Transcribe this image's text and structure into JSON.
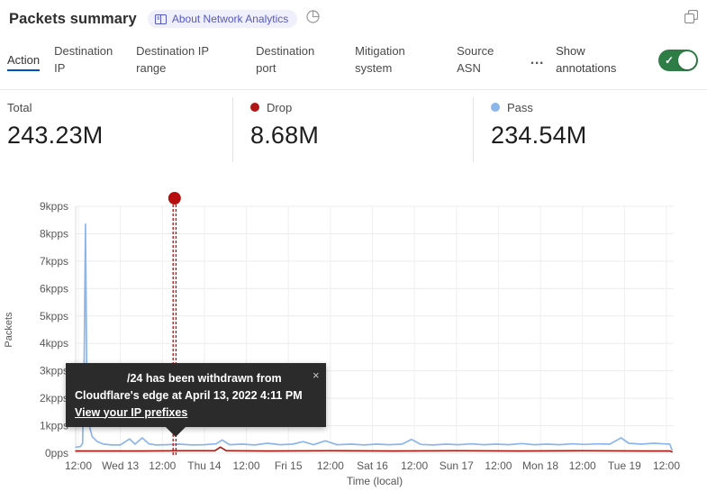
{
  "header": {
    "title": "Packets summary",
    "about_badge": "About Network Analytics"
  },
  "tabs": {
    "items": [
      {
        "label": "Action",
        "selected": true
      },
      {
        "label": "Destination IP",
        "selected": false
      },
      {
        "label": "Destination IP range",
        "selected": false
      },
      {
        "label": "Destination port",
        "selected": false
      },
      {
        "label": "Mitigation system",
        "selected": false
      },
      {
        "label": "Source ASN",
        "selected": false
      }
    ],
    "more_label": "…",
    "annotations_label": "Show annotations",
    "annotations_enabled": true,
    "toggle_color": "#2e7d46",
    "selected_underline_color": "#0051c3"
  },
  "stats": {
    "items": [
      {
        "label": "Total",
        "value": "243.23M",
        "color": null
      },
      {
        "label": "Drop",
        "value": "8.68M",
        "color": "#b01717"
      },
      {
        "label": "Pass",
        "value": "234.54M",
        "color": "#8cb6ea"
      }
    ]
  },
  "annotation_tooltip": {
    "line1": "/24 has been withdrawn from",
    "line2": "Cloudflare's edge at April 13, 2022 4:11 PM",
    "link": "View your IP prefixes",
    "close": "×"
  },
  "chart_data": {
    "type": "line",
    "title": "",
    "xlabel": "Time (local)",
    "ylabel": "Packets",
    "x_ticks": [
      "12:00",
      "Wed 13",
      "12:00",
      "Thu 14",
      "12:00",
      "Fri 15",
      "12:00",
      "Sat 16",
      "12:00",
      "Sun 17",
      "12:00",
      "Mon 18",
      "12:00",
      "Tue 19",
      "12:00"
    ],
    "y_ticks": [
      "0pps",
      "1kpps",
      "2kpps",
      "3kpps",
      "4kpps",
      "5kpps",
      "6kpps",
      "7kpps",
      "8kpps",
      "9kpps"
    ],
    "ylim": [
      0,
      9
    ],
    "y_unit": "kpps",
    "x_unit": "half-days since first tick (Apr 12 12:00, local)",
    "grid": true,
    "legend_position": "stats-row-above-chart",
    "series": [
      {
        "name": "Pass",
        "color": "#8cb6ea",
        "points": [
          [
            -0.06,
            0.22
          ],
          [
            0.05,
            0.24
          ],
          [
            0.1,
            0.35
          ],
          [
            0.14,
            3.5
          ],
          [
            0.17,
            8.35
          ],
          [
            0.2,
            3.0
          ],
          [
            0.25,
            1.05
          ],
          [
            0.33,
            0.6
          ],
          [
            0.45,
            0.42
          ],
          [
            0.6,
            0.33
          ],
          [
            0.8,
            0.3
          ],
          [
            1.0,
            0.3
          ],
          [
            1.22,
            0.52
          ],
          [
            1.35,
            0.33
          ],
          [
            1.52,
            0.56
          ],
          [
            1.68,
            0.34
          ],
          [
            1.85,
            0.3
          ],
          [
            2.1,
            0.31
          ],
          [
            2.4,
            0.33
          ],
          [
            2.7,
            0.3
          ],
          [
            3.0,
            0.31
          ],
          [
            3.28,
            0.34
          ],
          [
            3.42,
            0.48
          ],
          [
            3.6,
            0.31
          ],
          [
            3.9,
            0.33
          ],
          [
            4.2,
            0.3
          ],
          [
            4.5,
            0.36
          ],
          [
            4.8,
            0.31
          ],
          [
            5.1,
            0.33
          ],
          [
            5.35,
            0.42
          ],
          [
            5.6,
            0.31
          ],
          [
            5.88,
            0.45
          ],
          [
            6.15,
            0.31
          ],
          [
            6.5,
            0.33
          ],
          [
            6.8,
            0.3
          ],
          [
            7.1,
            0.33
          ],
          [
            7.4,
            0.31
          ],
          [
            7.7,
            0.33
          ],
          [
            7.93,
            0.5
          ],
          [
            8.15,
            0.32
          ],
          [
            8.45,
            0.3
          ],
          [
            8.75,
            0.33
          ],
          [
            9.05,
            0.31
          ],
          [
            9.35,
            0.34
          ],
          [
            9.65,
            0.31
          ],
          [
            9.95,
            0.33
          ],
          [
            10.25,
            0.31
          ],
          [
            10.55,
            0.35
          ],
          [
            10.85,
            0.31
          ],
          [
            11.15,
            0.33
          ],
          [
            11.45,
            0.31
          ],
          [
            11.75,
            0.34
          ],
          [
            12.05,
            0.32
          ],
          [
            12.35,
            0.34
          ],
          [
            12.65,
            0.33
          ],
          [
            12.92,
            0.56
          ],
          [
            13.1,
            0.36
          ],
          [
            13.4,
            0.33
          ],
          [
            13.7,
            0.36
          ],
          [
            13.95,
            0.34
          ],
          [
            14.08,
            0.33
          ],
          [
            14.13,
            0.12
          ]
        ]
      },
      {
        "name": "Drop",
        "color": "#a81f18",
        "points": [
          [
            -0.06,
            0.08
          ],
          [
            0.5,
            0.08
          ],
          [
            1.5,
            0.08
          ],
          [
            2.5,
            0.09
          ],
          [
            3.25,
            0.09
          ],
          [
            3.38,
            0.22
          ],
          [
            3.52,
            0.09
          ],
          [
            4.5,
            0.08
          ],
          [
            6.0,
            0.09
          ],
          [
            7.5,
            0.08
          ],
          [
            9.0,
            0.09
          ],
          [
            10.5,
            0.08
          ],
          [
            12.0,
            0.09
          ],
          [
            13.5,
            0.08
          ],
          [
            14.08,
            0.08
          ],
          [
            14.13,
            0.05
          ]
        ]
      }
    ],
    "annotation": {
      "t": 2.29,
      "color": "#b60e0e",
      "label": "/24 has been withdrawn from Cloudflare's edge at April 13, 2022 4:11 PM",
      "link": "View your IP prefixes"
    }
  }
}
